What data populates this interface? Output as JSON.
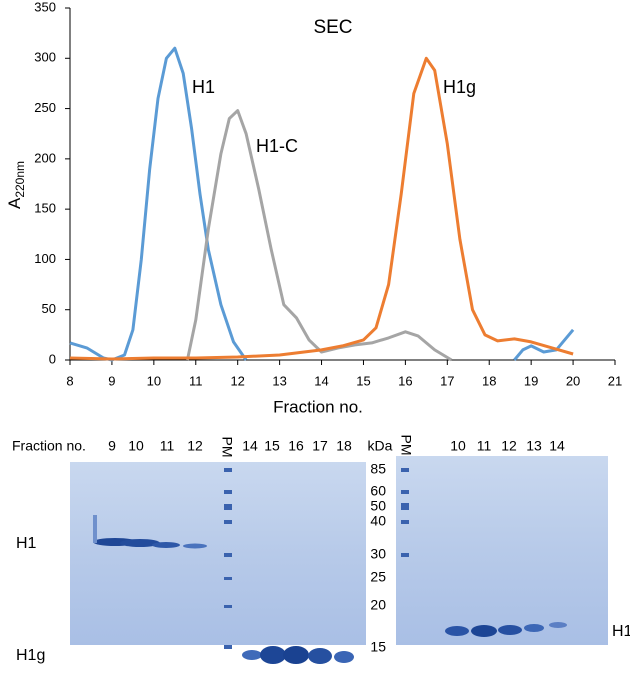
{
  "chart_data": {
    "type": "line",
    "title": "SEC",
    "x_label": "Fraction no.",
    "y_label": "A",
    "y_label_sub": "220nm",
    "xlim": [
      8,
      21
    ],
    "ylim": [
      0,
      350
    ],
    "xticks": [
      8,
      9,
      10,
      11,
      12,
      13,
      14,
      15,
      16,
      17,
      18,
      19,
      20,
      21
    ],
    "yticks": [
      0,
      50,
      100,
      150,
      200,
      250,
      300,
      350
    ],
    "series": [
      {
        "name": "H1",
        "color": "#5b9bd5",
        "x": [
          8,
          8.4,
          8.8,
          9,
          9.3,
          9.5,
          9.7,
          9.9,
          10.1,
          10.3,
          10.5,
          10.7,
          10.9,
          11.1,
          11.3,
          11.6,
          11.9,
          12.2,
          12.5,
          18.6,
          18.8,
          19,
          19.3,
          19.6,
          20
        ],
        "values": [
          17,
          12,
          2,
          0,
          5,
          30,
          100,
          190,
          260,
          300,
          310,
          285,
          230,
          165,
          110,
          55,
          18,
          0,
          null,
          0,
          10,
          14,
          8,
          10,
          30
        ]
      },
      {
        "name": "H1-C",
        "color": "#a5a5a5",
        "x": [
          10.8,
          11,
          11.3,
          11.6,
          11.8,
          12,
          12.2,
          12.5,
          12.8,
          13.1,
          13.4,
          13.7,
          14,
          14.4,
          14.8,
          15.2,
          15.6,
          16,
          16.3,
          16.7,
          17.1
        ],
        "values": [
          0,
          40,
          130,
          205,
          240,
          248,
          225,
          170,
          110,
          55,
          42,
          20,
          8,
          12,
          15,
          17,
          22,
          28,
          24,
          10,
          0
        ]
      },
      {
        "name": "H1g",
        "color": "#ed7d31",
        "x": [
          8,
          9,
          10,
          11,
          12,
          13,
          14,
          14.5,
          15,
          15.3,
          15.6,
          15.9,
          16.2,
          16.5,
          16.7,
          17,
          17.3,
          17.6,
          17.9,
          18.2,
          18.6,
          19,
          19.5,
          20
        ],
        "values": [
          2,
          1,
          2,
          2,
          3,
          5,
          10,
          14,
          20,
          32,
          75,
          165,
          265,
          300,
          288,
          215,
          120,
          50,
          25,
          19,
          21,
          18,
          12,
          6
        ]
      }
    ]
  },
  "gels": {
    "fraction_label": "Fraction no.",
    "gel1_lanes": [
      "9",
      "10",
      "11",
      "12",
      "PM",
      "14",
      "15",
      "16",
      "17",
      "18"
    ],
    "kda_label": "kDa",
    "markers": [
      "85",
      "60",
      "50",
      "40",
      "30",
      "25",
      "20",
      "15"
    ],
    "gel2_lanes": [
      "PM",
      "10",
      "11",
      "12",
      "13",
      "14"
    ],
    "band_labels": [
      "H1",
      "H1g",
      "H1-C"
    ]
  }
}
